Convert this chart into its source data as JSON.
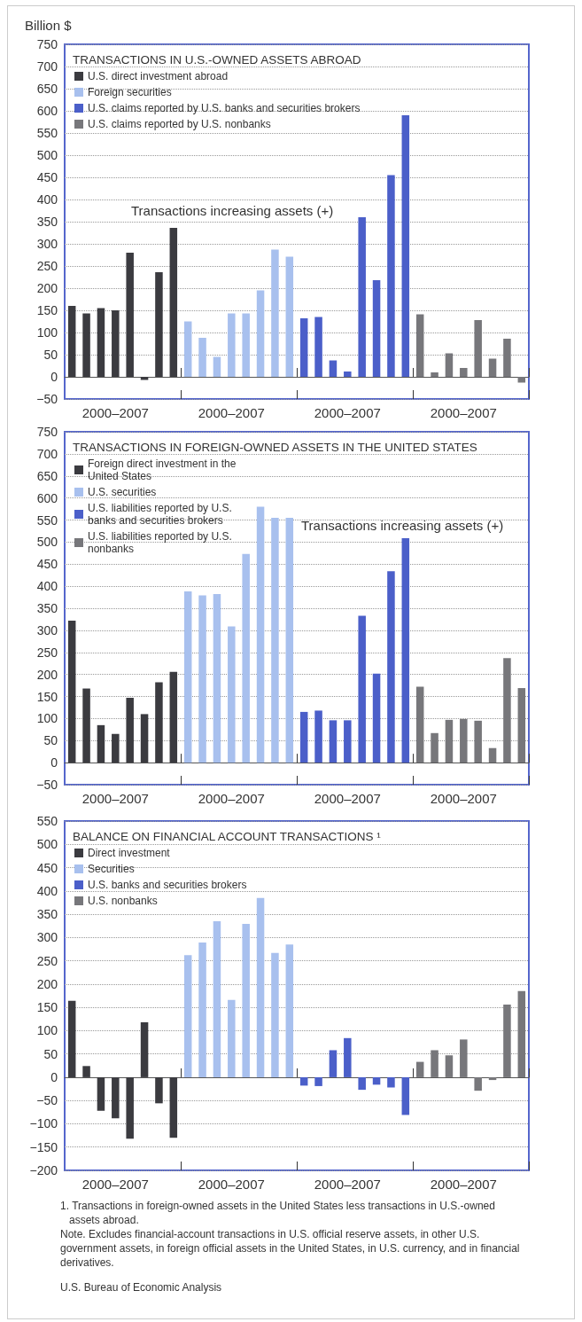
{
  "chart_data": [
    {
      "type": "bar",
      "title": "TRANSACTIONS IN U.S.-OWNED ASSETS ABROAD",
      "ylabel": "Billion $",
      "categories": [
        null,
        null,
        null,
        "2000–2007",
        null,
        null,
        null,
        null,
        null,
        null,
        null,
        "2000–2007",
        null,
        null,
        null,
        null,
        null,
        null,
        null,
        "2000–2007",
        null,
        null,
        null,
        null,
        null,
        null,
        null,
        "2000–2007",
        null,
        null,
        null,
        null
      ],
      "series": [
        {
          "name": "U.S. direct investment abroad",
          "color": "#3b3b40",
          "values": [
            160,
            143,
            155,
            150,
            280,
            -7,
            236,
            336,
            null,
            null,
            null,
            null,
            null,
            null,
            null,
            null,
            null,
            null,
            null,
            null,
            null,
            null,
            null,
            null,
            null,
            null,
            null,
            null,
            null,
            null,
            null,
            null
          ]
        },
        {
          "name": "Foreign securities",
          "color": "#a8c0ee",
          "values": [
            null,
            null,
            null,
            null,
            null,
            null,
            null,
            null,
            125,
            88,
            45,
            143,
            143,
            195,
            287,
            271,
            null,
            null,
            null,
            null,
            null,
            null,
            null,
            null,
            null,
            null,
            null,
            null,
            null,
            null,
            null,
            null
          ]
        },
        {
          "name": "U.S. claims reported by U.S. banks and securities brokers",
          "color": "#4b5fc9",
          "values": [
            null,
            null,
            null,
            null,
            null,
            null,
            null,
            null,
            null,
            null,
            null,
            null,
            null,
            null,
            null,
            null,
            132,
            135,
            37,
            12,
            360,
            218,
            455,
            590,
            null,
            null,
            null,
            null,
            null,
            null,
            null,
            null
          ]
        },
        {
          "name": "U.S. claims reported by U.S. nonbanks",
          "color": "#77777b",
          "values": [
            null,
            null,
            null,
            null,
            null,
            null,
            null,
            null,
            null,
            null,
            null,
            null,
            null,
            null,
            null,
            null,
            null,
            null,
            null,
            null,
            null,
            null,
            null,
            null,
            141,
            10,
            53,
            20,
            128,
            41,
            86,
            -13
          ]
        }
      ],
      "ylim": [
        -50,
        750
      ],
      "yticks": [
        -50,
        0,
        50,
        100,
        150,
        200,
        250,
        300,
        350,
        400,
        450,
        500,
        550,
        600,
        650,
        700,
        750
      ],
      "grid": "y",
      "legend": "top left",
      "annotations": [
        "Transactions increasing assets (+)"
      ]
    },
    {
      "type": "bar",
      "title": "TRANSACTIONS IN FOREIGN-OWNED ASSETS IN THE UNITED STATES",
      "categories": [
        null,
        null,
        null,
        "2000–2007",
        null,
        null,
        null,
        null,
        null,
        null,
        null,
        "2000–2007",
        null,
        null,
        null,
        null,
        null,
        null,
        null,
        "2000–2007",
        null,
        null,
        null,
        null,
        null,
        null,
        null,
        "2000–2007",
        null,
        null,
        null,
        null
      ],
      "series": [
        {
          "name": "Foreign direct investment in the United States",
          "color": "#3b3b40",
          "values": [
            322,
            168,
            85,
            65,
            147,
            110,
            182,
            206,
            null,
            null,
            null,
            null,
            null,
            null,
            null,
            null,
            null,
            null,
            null,
            null,
            null,
            null,
            null,
            null,
            null,
            null,
            null,
            null,
            null,
            null,
            null,
            null
          ]
        },
        {
          "name": "U.S. securities",
          "color": "#a8c0ee",
          "values": [
            null,
            null,
            null,
            null,
            null,
            null,
            null,
            null,
            388,
            379,
            382,
            309,
            473,
            580,
            555,
            555,
            null,
            null,
            null,
            null,
            null,
            null,
            null,
            null,
            null,
            null,
            null,
            null,
            null,
            null,
            null,
            null
          ]
        },
        {
          "name": "U.S. liabilities reported by U.S. banks and securities brokers",
          "color": "#4b5fc9",
          "values": [
            null,
            null,
            null,
            null,
            null,
            null,
            null,
            null,
            null,
            null,
            null,
            null,
            null,
            null,
            null,
            null,
            115,
            118,
            96,
            96,
            333,
            202,
            434,
            509,
            null,
            null,
            null,
            null,
            null,
            null,
            null,
            null
          ]
        },
        {
          "name": "U.S. liabilities reported by U.S. nonbanks",
          "color": "#77777b",
          "values": [
            null,
            null,
            null,
            null,
            null,
            null,
            null,
            null,
            null,
            null,
            null,
            null,
            null,
            null,
            null,
            null,
            null,
            null,
            null,
            null,
            null,
            null,
            null,
            null,
            172,
            67,
            97,
            99,
            95,
            33,
            237,
            169
          ]
        }
      ],
      "ylim": [
        -50,
        750
      ],
      "yticks": [
        -50,
        0,
        50,
        100,
        150,
        200,
        250,
        300,
        350,
        400,
        450,
        500,
        550,
        600,
        650,
        700,
        750
      ],
      "grid": "y",
      "legend": "top left",
      "annotations": [
        "Transactions increasing assets (+)"
      ]
    },
    {
      "type": "bar",
      "title": "BALANCE ON FINANCIAL ACCOUNT TRANSACTIONS ¹",
      "categories": [
        null,
        null,
        null,
        "2000–2007",
        null,
        null,
        null,
        null,
        null,
        null,
        null,
        "2000–2007",
        null,
        null,
        null,
        null,
        null,
        null,
        null,
        "2000–2007",
        null,
        null,
        null,
        null,
        null,
        null,
        null,
        "2000–2007",
        null,
        null,
        null,
        null
      ],
      "series": [
        {
          "name": "Direct investment",
          "color": "#3b3b40",
          "values": [
            164,
            24,
            -72,
            -88,
            -132,
            118,
            -56,
            -130,
            null,
            null,
            null,
            null,
            null,
            null,
            null,
            null,
            null,
            null,
            null,
            null,
            null,
            null,
            null,
            null,
            null,
            null,
            null,
            null,
            null,
            null,
            null,
            null
          ]
        },
        {
          "name": "Securities",
          "color": "#a8c0ee",
          "values": [
            null,
            null,
            null,
            null,
            null,
            null,
            null,
            null,
            262,
            289,
            335,
            166,
            329,
            385,
            267,
            285,
            null,
            null,
            null,
            null,
            null,
            null,
            null,
            null,
            null,
            null,
            null,
            null,
            null,
            null,
            null,
            null
          ]
        },
        {
          "name": "U.S. banks and securities brokers",
          "color": "#4b5fc9",
          "values": [
            null,
            null,
            null,
            null,
            null,
            null,
            null,
            null,
            null,
            null,
            null,
            null,
            null,
            null,
            null,
            null,
            -18,
            -19,
            58,
            84,
            -27,
            -16,
            -22,
            -81,
            null,
            null,
            null,
            null,
            null,
            null,
            null,
            null
          ]
        },
        {
          "name": "U.S. nonbanks",
          "color": "#77777b",
          "values": [
            null,
            null,
            null,
            null,
            null,
            null,
            null,
            null,
            null,
            null,
            null,
            null,
            null,
            null,
            null,
            null,
            null,
            null,
            null,
            null,
            null,
            null,
            null,
            null,
            33,
            58,
            47,
            81,
            -29,
            -6,
            156,
            185
          ]
        }
      ],
      "ylim": [
        -200,
        550
      ],
      "yticks": [
        -200,
        -150,
        -100,
        -50,
        0,
        50,
        100,
        150,
        200,
        250,
        300,
        350,
        400,
        450,
        500,
        550
      ],
      "grid": "y",
      "legend": "top left",
      "annotations": [
        "1. Transactions in foreign-owned assets in the United States less transactions in U.S.-owned assets abroad.",
        "Note. Excludes financial-account transactions in U.S. official reserve assets, in other U.S. government assets, in foreign official assets in the United States, in U.S. currency, and in financial derivatives.",
        "U.S. Bureau of Economic Analysis"
      ]
    }
  ]
}
